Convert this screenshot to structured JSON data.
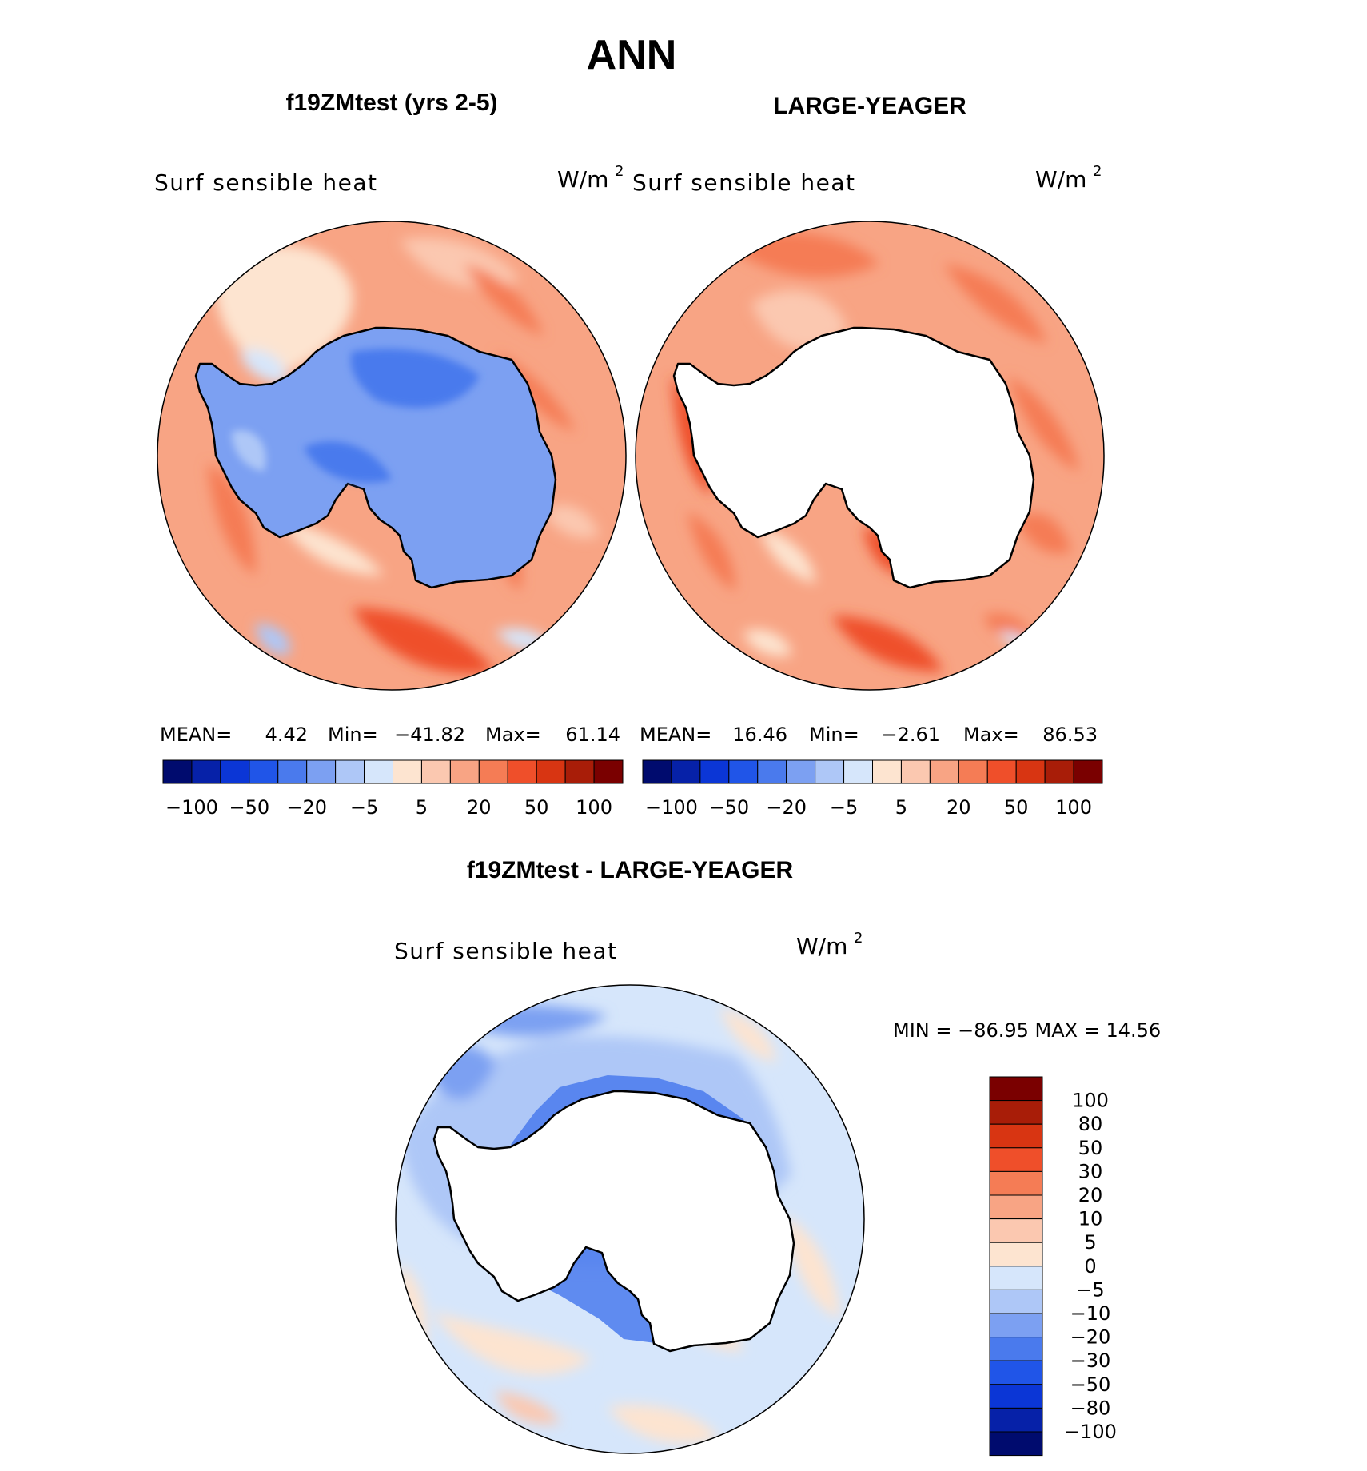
{
  "figure": {
    "title": "ANN",
    "panels": [
      {
        "title": "f19ZMtest (yrs 2-5)",
        "variable": "Surf sensible heat",
        "units": "W/m",
        "units_exp": "2",
        "stats": {
          "mean_label": "MEAN=",
          "mean": "4.42",
          "min_label": "Min=",
          "min": "−41.82",
          "max_label": "Max=",
          "max": "61.14"
        },
        "field": "model"
      },
      {
        "title": "LARGE-YEAGER",
        "variable": "Surf sensible heat",
        "units": "W/m",
        "units_exp": "2",
        "stats": {
          "mean_label": "MEAN=",
          "mean": "16.46",
          "min_label": "Min=",
          "min": "−2.61",
          "max_label": "Max=",
          "max": "86.53"
        },
        "field": "obs"
      }
    ],
    "horizontal_colorbar": {
      "colors": [
        "#000b6e",
        "#0621a8",
        "#0b36d6",
        "#2055e8",
        "#4a7aed",
        "#7ca0f2",
        "#aec7f7",
        "#d6e6fb",
        "#fde4d0",
        "#fbc8b0",
        "#f8a484",
        "#f57c55",
        "#ef4f2a",
        "#d83512",
        "#a81d08",
        "#7a0000"
      ],
      "labels": [
        "−100",
        "−50",
        "−20",
        "−5",
        "5",
        "20",
        "50",
        "100"
      ]
    },
    "difference": {
      "title": "f19ZMtest - LARGE-YEAGER",
      "variable": "Surf sensible heat",
      "units": "W/m",
      "units_exp": "2",
      "minmax_text": "MIN = −86.95  MAX =   14.56",
      "colorbar": {
        "colors": [
          "#7a0000",
          "#a81d08",
          "#d83512",
          "#ef4f2a",
          "#f57c55",
          "#f8a484",
          "#fbc8b0",
          "#fde4d0",
          "#d6e6fb",
          "#aec7f7",
          "#7ca0f2",
          "#4a7aed",
          "#2055e8",
          "#0b36d6",
          "#0621a8",
          "#000b6e"
        ],
        "labels": [
          "100",
          "80",
          "50",
          "30",
          "20",
          "10",
          "5",
          "0",
          "−5",
          "−10",
          "−20",
          "−30",
          "−50",
          "−80",
          "−100"
        ]
      }
    },
    "colors": {
      "land": "#ffffff",
      "coast": "#000000"
    }
  }
}
